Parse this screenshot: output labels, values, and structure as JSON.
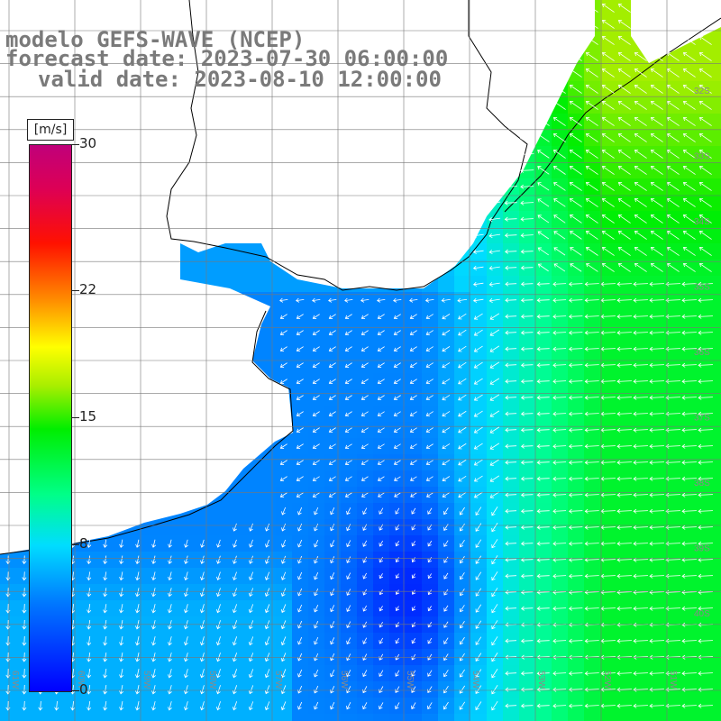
{
  "title": {
    "line1": "modelo GEFS-WAVE (NCEP)",
    "line2": "forecast date: 2023-07-30 06:00:00",
    "line3": "valid date: 2023-08-10 12:00:00"
  },
  "colorbar": {
    "unit": "[m/s]",
    "ticks": [
      {
        "value": 30,
        "label": "30"
      },
      {
        "value": 22,
        "label": "22"
      },
      {
        "value": 15,
        "label": "15"
      },
      {
        "value": 8,
        "label": "8"
      },
      {
        "value": 0,
        "label": "0"
      }
    ],
    "range": [
      0,
      30
    ],
    "colors": [
      "#0000ff",
      "#0077ff",
      "#00ddff",
      "#00ff88",
      "#00ee00",
      "#aaee00",
      "#ffff00",
      "#ff8800",
      "#ff1100",
      "#dd0055",
      "#c0007a"
    ]
  },
  "map": {
    "variable": "wind speed and direction",
    "land_color": "#ffffff",
    "grid_color": "#777777",
    "coast_color": "#000000",
    "lat_labels": [
      "32S",
      "33S",
      "34S",
      "35S",
      "36S",
      "37S",
      "38S",
      "39S",
      "40S"
    ],
    "lon_labels": [
      "61W",
      "60W",
      "59W",
      "58W",
      "57W",
      "56W",
      "55W",
      "54W",
      "53W",
      "52W",
      "51W"
    ],
    "field_regions": [
      {
        "zone": "Rio de la Plata estuary",
        "speed": 6,
        "dir": "from east"
      },
      {
        "zone": "open shelf off Buenos Aires",
        "speed": 5,
        "dir": "from northeast"
      },
      {
        "zone": "wind minimum near 56W 40S",
        "speed": 2,
        "dir": "variable"
      },
      {
        "zone": "coast of Uruguay and southern Brazil",
        "speed": 13,
        "dir": "from southwest"
      },
      {
        "zone": "offshore east",
        "speed": 12,
        "dir": "from east"
      }
    ]
  }
}
